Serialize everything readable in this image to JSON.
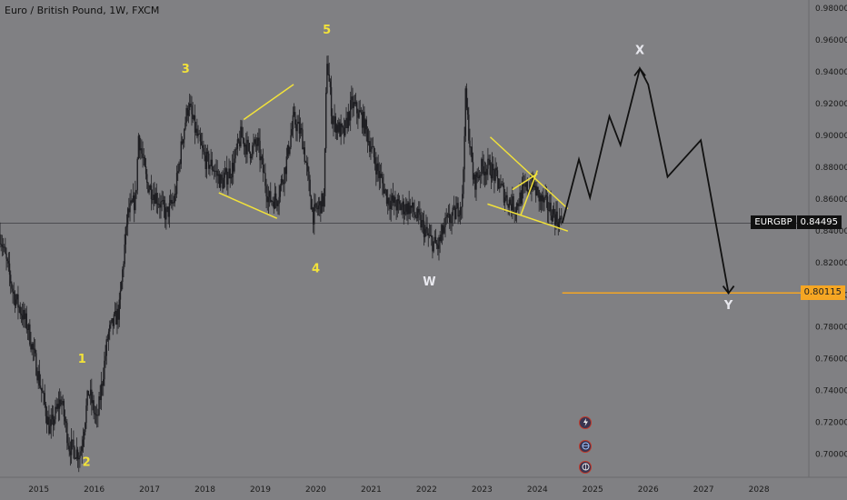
{
  "header": {
    "symbol_title": "Euro / British Pound, 1W, FXCM"
  },
  "price_tags": {
    "current_symbol": "EURGBP",
    "current_value": "0.84495",
    "target_value": "0.80115"
  },
  "colors": {
    "background": "#808083",
    "candles": "#1e1e22",
    "channel_lines": "#f2e23a",
    "projection": "#111111",
    "target_line": "#f5a623",
    "wave_yellow": "#f2e23a",
    "wave_light": "#e8e8ee"
  },
  "badges": [
    "lightning-icon",
    "globe-icon",
    "globe-icon"
  ],
  "chart_data": {
    "type": "candlestick",
    "title": "Euro / British Pound, 1W, FXCM",
    "xlim": [
      2014.3,
      2028.9
    ],
    "ylim": [
      0.6855,
      0.985
    ],
    "x_ticks": [
      "2015",
      "2016",
      "2017",
      "2018",
      "2019",
      "2020",
      "2021",
      "2022",
      "2023",
      "2024",
      "2025",
      "2026",
      "2027",
      "2028"
    ],
    "y_ticks": [
      "0.98000",
      "0.96000",
      "0.94000",
      "0.92000",
      "0.90000",
      "0.88000",
      "0.86000",
      "0.84000",
      "0.82000",
      "0.80000",
      "0.78000",
      "0.76000",
      "0.74000",
      "0.72000",
      "0.70000"
    ],
    "price_path": [
      [
        2014.3,
        0.838
      ],
      [
        2014.55,
        0.8
      ],
      [
        2014.8,
        0.78
      ],
      [
        2015.05,
        0.74
      ],
      [
        2015.2,
        0.715
      ],
      [
        2015.4,
        0.735
      ],
      [
        2015.55,
        0.705
      ],
      [
        2015.75,
        0.7
      ],
      [
        2015.9,
        0.74
      ],
      [
        2016.05,
        0.72
      ],
      [
        2016.25,
        0.775
      ],
      [
        2016.45,
        0.79
      ],
      [
        2016.6,
        0.85
      ],
      [
        2016.75,
        0.86
      ],
      [
        2016.8,
        0.9
      ],
      [
        2016.95,
        0.87
      ],
      [
        2017.15,
        0.86
      ],
      [
        2017.3,
        0.85
      ],
      [
        2017.45,
        0.86
      ],
      [
        2017.6,
        0.9
      ],
      [
        2017.7,
        0.92
      ],
      [
        2017.85,
        0.9
      ],
      [
        2018.0,
        0.885
      ],
      [
        2018.15,
        0.88
      ],
      [
        2018.3,
        0.87
      ],
      [
        2018.5,
        0.88
      ],
      [
        2018.65,
        0.9
      ],
      [
        2018.8,
        0.89
      ],
      [
        2018.95,
        0.895
      ],
      [
        2019.15,
        0.86
      ],
      [
        2019.3,
        0.86
      ],
      [
        2019.45,
        0.88
      ],
      [
        2019.6,
        0.91
      ],
      [
        2019.75,
        0.9
      ],
      [
        2019.95,
        0.85
      ],
      [
        2020.15,
        0.86
      ],
      [
        2020.2,
        0.95
      ],
      [
        2020.3,
        0.91
      ],
      [
        2020.5,
        0.9
      ],
      [
        2020.65,
        0.92
      ],
      [
        2020.85,
        0.91
      ],
      [
        2021.1,
        0.88
      ],
      [
        2021.3,
        0.86
      ],
      [
        2021.5,
        0.855
      ],
      [
        2021.7,
        0.855
      ],
      [
        2021.9,
        0.845
      ],
      [
        2022.05,
        0.835
      ],
      [
        2022.2,
        0.83
      ],
      [
        2022.35,
        0.845
      ],
      [
        2022.5,
        0.85
      ],
      [
        2022.65,
        0.86
      ],
      [
        2022.7,
        0.925
      ],
      [
        2022.85,
        0.87
      ],
      [
        2023.0,
        0.88
      ],
      [
        2023.15,
        0.88
      ],
      [
        2023.3,
        0.87
      ],
      [
        2023.45,
        0.86
      ],
      [
        2023.6,
        0.855
      ],
      [
        2023.75,
        0.865
      ],
      [
        2023.9,
        0.87
      ],
      [
        2024.05,
        0.86
      ],
      [
        2024.2,
        0.855
      ],
      [
        2024.35,
        0.848
      ],
      [
        2024.45,
        0.845
      ]
    ],
    "projection": [
      [
        2024.45,
        0.845
      ],
      [
        2024.75,
        0.885
      ],
      [
        2024.95,
        0.861
      ],
      [
        2025.3,
        0.912
      ],
      [
        2025.5,
        0.894
      ],
      [
        2025.85,
        0.942
      ],
      [
        2026.0,
        0.932
      ],
      [
        2026.35,
        0.874
      ],
      [
        2026.95,
        0.897
      ],
      [
        2027.45,
        0.801
      ]
    ],
    "channels": [
      {
        "from": [
          2018.7,
          0.91
        ],
        "to": [
          2019.6,
          0.932
        ]
      },
      {
        "from": [
          2018.25,
          0.864
        ],
        "to": [
          2019.3,
          0.848
        ]
      },
      {
        "from": [
          2023.15,
          0.899
        ],
        "to": [
          2024.55,
          0.854
        ]
      },
      {
        "from": [
          2023.1,
          0.857
        ],
        "to": [
          2024.55,
          0.84
        ]
      },
      {
        "from": [
          2023.55,
          0.866
        ],
        "to": [
          2024.0,
          0.876
        ]
      },
      {
        "from": [
          2023.7,
          0.85
        ],
        "to": [
          2024.0,
          0.878
        ]
      }
    ],
    "current_price": 0.84495,
    "target_price": 0.80115,
    "target_line_start": 2024.45,
    "wave_labels": [
      {
        "text": "1",
        "x": 2015.78,
        "y": 0.7575,
        "color": "yellow"
      },
      {
        "text": "2",
        "x": 2015.86,
        "y": 0.6925,
        "color": "yellow"
      },
      {
        "text": "3",
        "x": 2017.65,
        "y": 0.9395,
        "color": "yellow"
      },
      {
        "text": "4",
        "x": 2020.0,
        "y": 0.814,
        "color": "yellow"
      },
      {
        "text": "5",
        "x": 2020.2,
        "y": 0.964,
        "color": "yellow"
      },
      {
        "text": "W",
        "x": 2022.05,
        "y": 0.806,
        "color": "light"
      },
      {
        "text": "X",
        "x": 2025.85,
        "y": 0.951,
        "color": "light"
      },
      {
        "text": "Y",
        "x": 2027.45,
        "y": 0.791,
        "color": "light"
      }
    ]
  }
}
